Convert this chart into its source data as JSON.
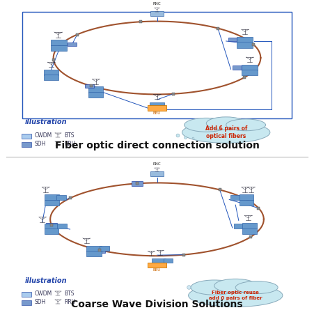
{
  "title1": "Fiber optic direct connection solution",
  "title2": "Coarse Wave Division Solutions",
  "panel1_note": "Add 6 pairs of\noptical fibers",
  "panel2_note": "Fiber optic reuse\nadd 0 pairs of fiber",
  "bg_color": "#ffffff",
  "ring_color": "#a0522d",
  "blue_box_color": "#6699cc",
  "blue_box_dark": "#3366aa",
  "blue_line_color": "#2255bb",
  "bbu_color": "#ffaa44",
  "bbu_border": "#cc7700",
  "cloud_color_1": "#c8e8f0",
  "cloud_border_1": "#88aabb",
  "cloud_color_2": "#c8e8f0",
  "cloud_border_2": "#88aabb",
  "note_color_1": "#cc2200",
  "note_color_2": "#cc2200",
  "connector_color": "#888888",
  "rnc_color": "#99bbdd",
  "title_fontsize": 10,
  "illus_fontsize": 7,
  "legend_fontsize": 5.5
}
